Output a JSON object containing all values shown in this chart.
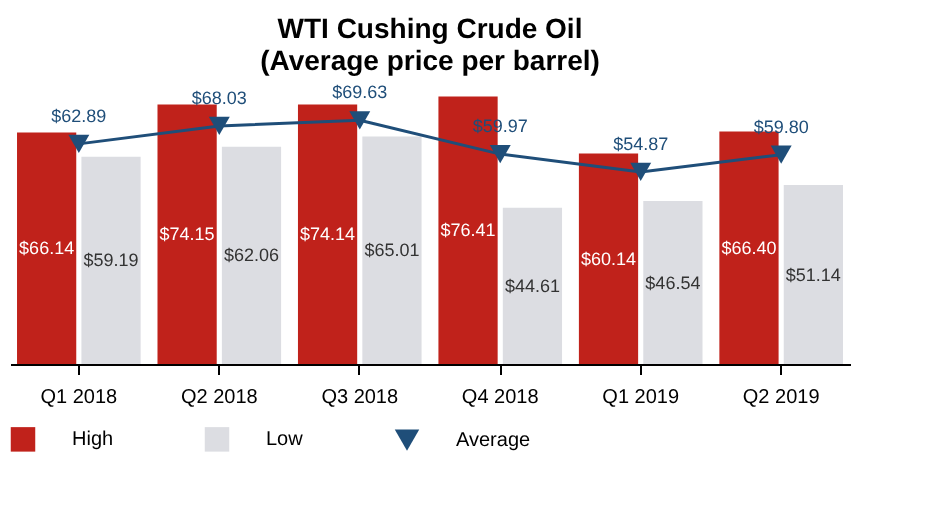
{
  "chart_data": {
    "type": "bar",
    "title": [
      "WTI Cushing Crude Oil",
      "(Average price per barrel)"
    ],
    "categories": [
      "Q1 2018",
      "Q2 2018",
      "Q3 2018",
      "Q4 2018",
      "Q1 2019",
      "Q2 2019"
    ],
    "series": [
      {
        "name": "High",
        "color": "#c0221b",
        "values": [
          66.14,
          74.15,
          74.14,
          76.41,
          60.14,
          66.4
        ],
        "value_labels": [
          "$66.14",
          "$74.15",
          "$74.14",
          "$76.41",
          "$60.14",
          "$66.40"
        ]
      },
      {
        "name": "Low",
        "color": "#dcdde2",
        "values": [
          59.19,
          62.06,
          65.01,
          44.61,
          46.54,
          51.14
        ],
        "value_labels": [
          "$59.19",
          "$62.06",
          "$65.01",
          "$44.61",
          "$46.54",
          "$51.14"
        ]
      },
      {
        "name": "Average",
        "type": "line",
        "color": "#1f4e79",
        "marker": "triangle",
        "values": [
          62.89,
          68.03,
          69.63,
          59.97,
          54.87,
          59.8
        ],
        "value_labels": [
          "$62.89",
          "$68.03",
          "$69.63",
          "$59.97",
          "$54.87",
          "$59.80"
        ]
      }
    ],
    "legend": "bottom"
  }
}
